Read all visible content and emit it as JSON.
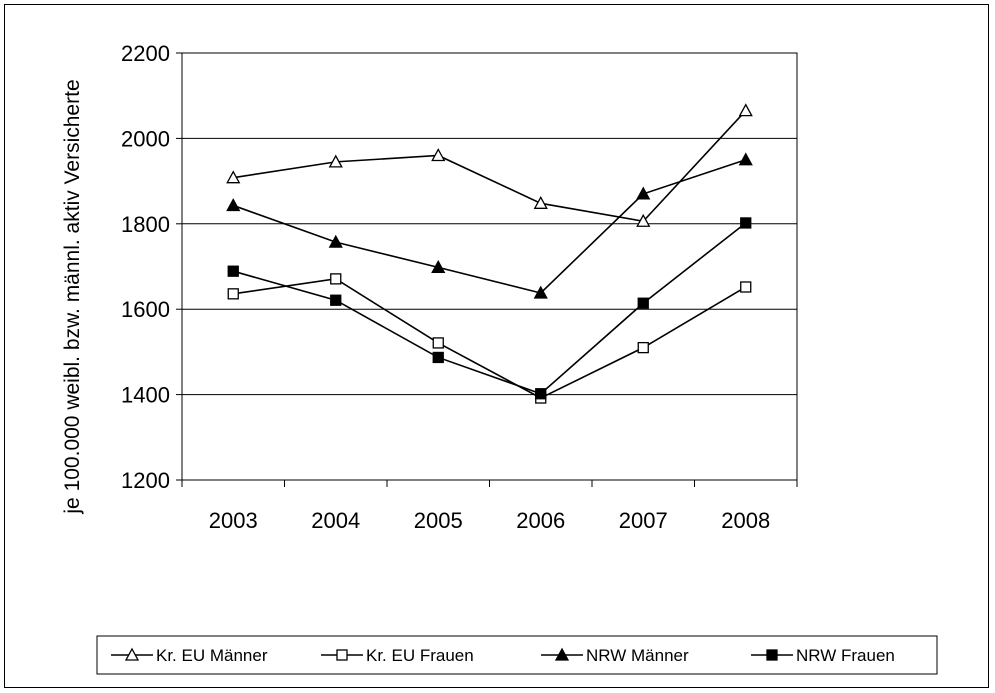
{
  "chart_data": {
    "type": "line",
    "title": "",
    "xlabel": "",
    "ylabel": "je 100.000 weibl. bzw. männl. aktiv Versicherte",
    "categories": [
      "2003",
      "2004",
      "2005",
      "2006",
      "2007",
      "2008"
    ],
    "ylim": [
      1200,
      2200
    ],
    "yticks": [
      1200,
      1400,
      1600,
      1800,
      2000,
      2200
    ],
    "grid": "horizontal",
    "legend_position": "bottom",
    "series": [
      {
        "name": "Kr. EU Männer",
        "marker": "triangle-open",
        "values": [
          1908,
          1945,
          1960,
          1848,
          1806,
          2065
        ]
      },
      {
        "name": "Kr. EU Frauen",
        "marker": "square-open",
        "values": [
          1636,
          1671,
          1521,
          1392,
          1510,
          1652
        ]
      },
      {
        "name": "NRW Männer",
        "marker": "triangle-filled",
        "values": [
          1843,
          1757,
          1698,
          1638,
          1870,
          1950
        ]
      },
      {
        "name": "NRW Frauen",
        "marker": "square-filled",
        "values": [
          1689,
          1621,
          1487,
          1402,
          1614,
          1802
        ]
      }
    ]
  }
}
